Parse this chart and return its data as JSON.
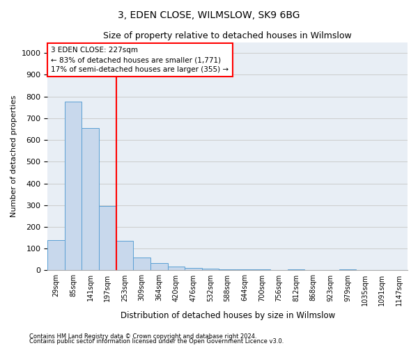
{
  "title1": "3, EDEN CLOSE, WILMSLOW, SK9 6BG",
  "title2": "Size of property relative to detached houses in Wilmslow",
  "xlabel": "Distribution of detached houses by size in Wilmslow",
  "ylabel": "Number of detached properties",
  "bin_labels": [
    "29sqm",
    "85sqm",
    "141sqm",
    "197sqm",
    "253sqm",
    "309sqm",
    "364sqm",
    "420sqm",
    "476sqm",
    "532sqm",
    "588sqm",
    "644sqm",
    "700sqm",
    "756sqm",
    "812sqm",
    "868sqm",
    "923sqm",
    "979sqm",
    "1035sqm",
    "1091sqm",
    "1147sqm"
  ],
  "bar_heights": [
    140,
    775,
    655,
    295,
    135,
    60,
    35,
    18,
    12,
    8,
    5,
    5,
    5,
    0,
    4,
    0,
    0,
    3,
    0,
    0,
    0
  ],
  "bar_color": "#c8d8ec",
  "bar_edge_color": "#5a9fd4",
  "vline_color": "red",
  "annotation_text": "3 EDEN CLOSE: 227sqm\n← 83% of detached houses are smaller (1,771)\n17% of semi-detached houses are larger (355) →",
  "annotation_box_color": "white",
  "annotation_box_edge": "red",
  "footer1": "Contains HM Land Registry data © Crown copyright and database right 2024.",
  "footer2": "Contains public sector information licensed under the Open Government Licence v3.0.",
  "ylim": [
    0,
    1050
  ],
  "yticks": [
    0,
    100,
    200,
    300,
    400,
    500,
    600,
    700,
    800,
    900,
    1000
  ],
  "grid_color": "#cccccc",
  "bg_color": "#e8eef5"
}
